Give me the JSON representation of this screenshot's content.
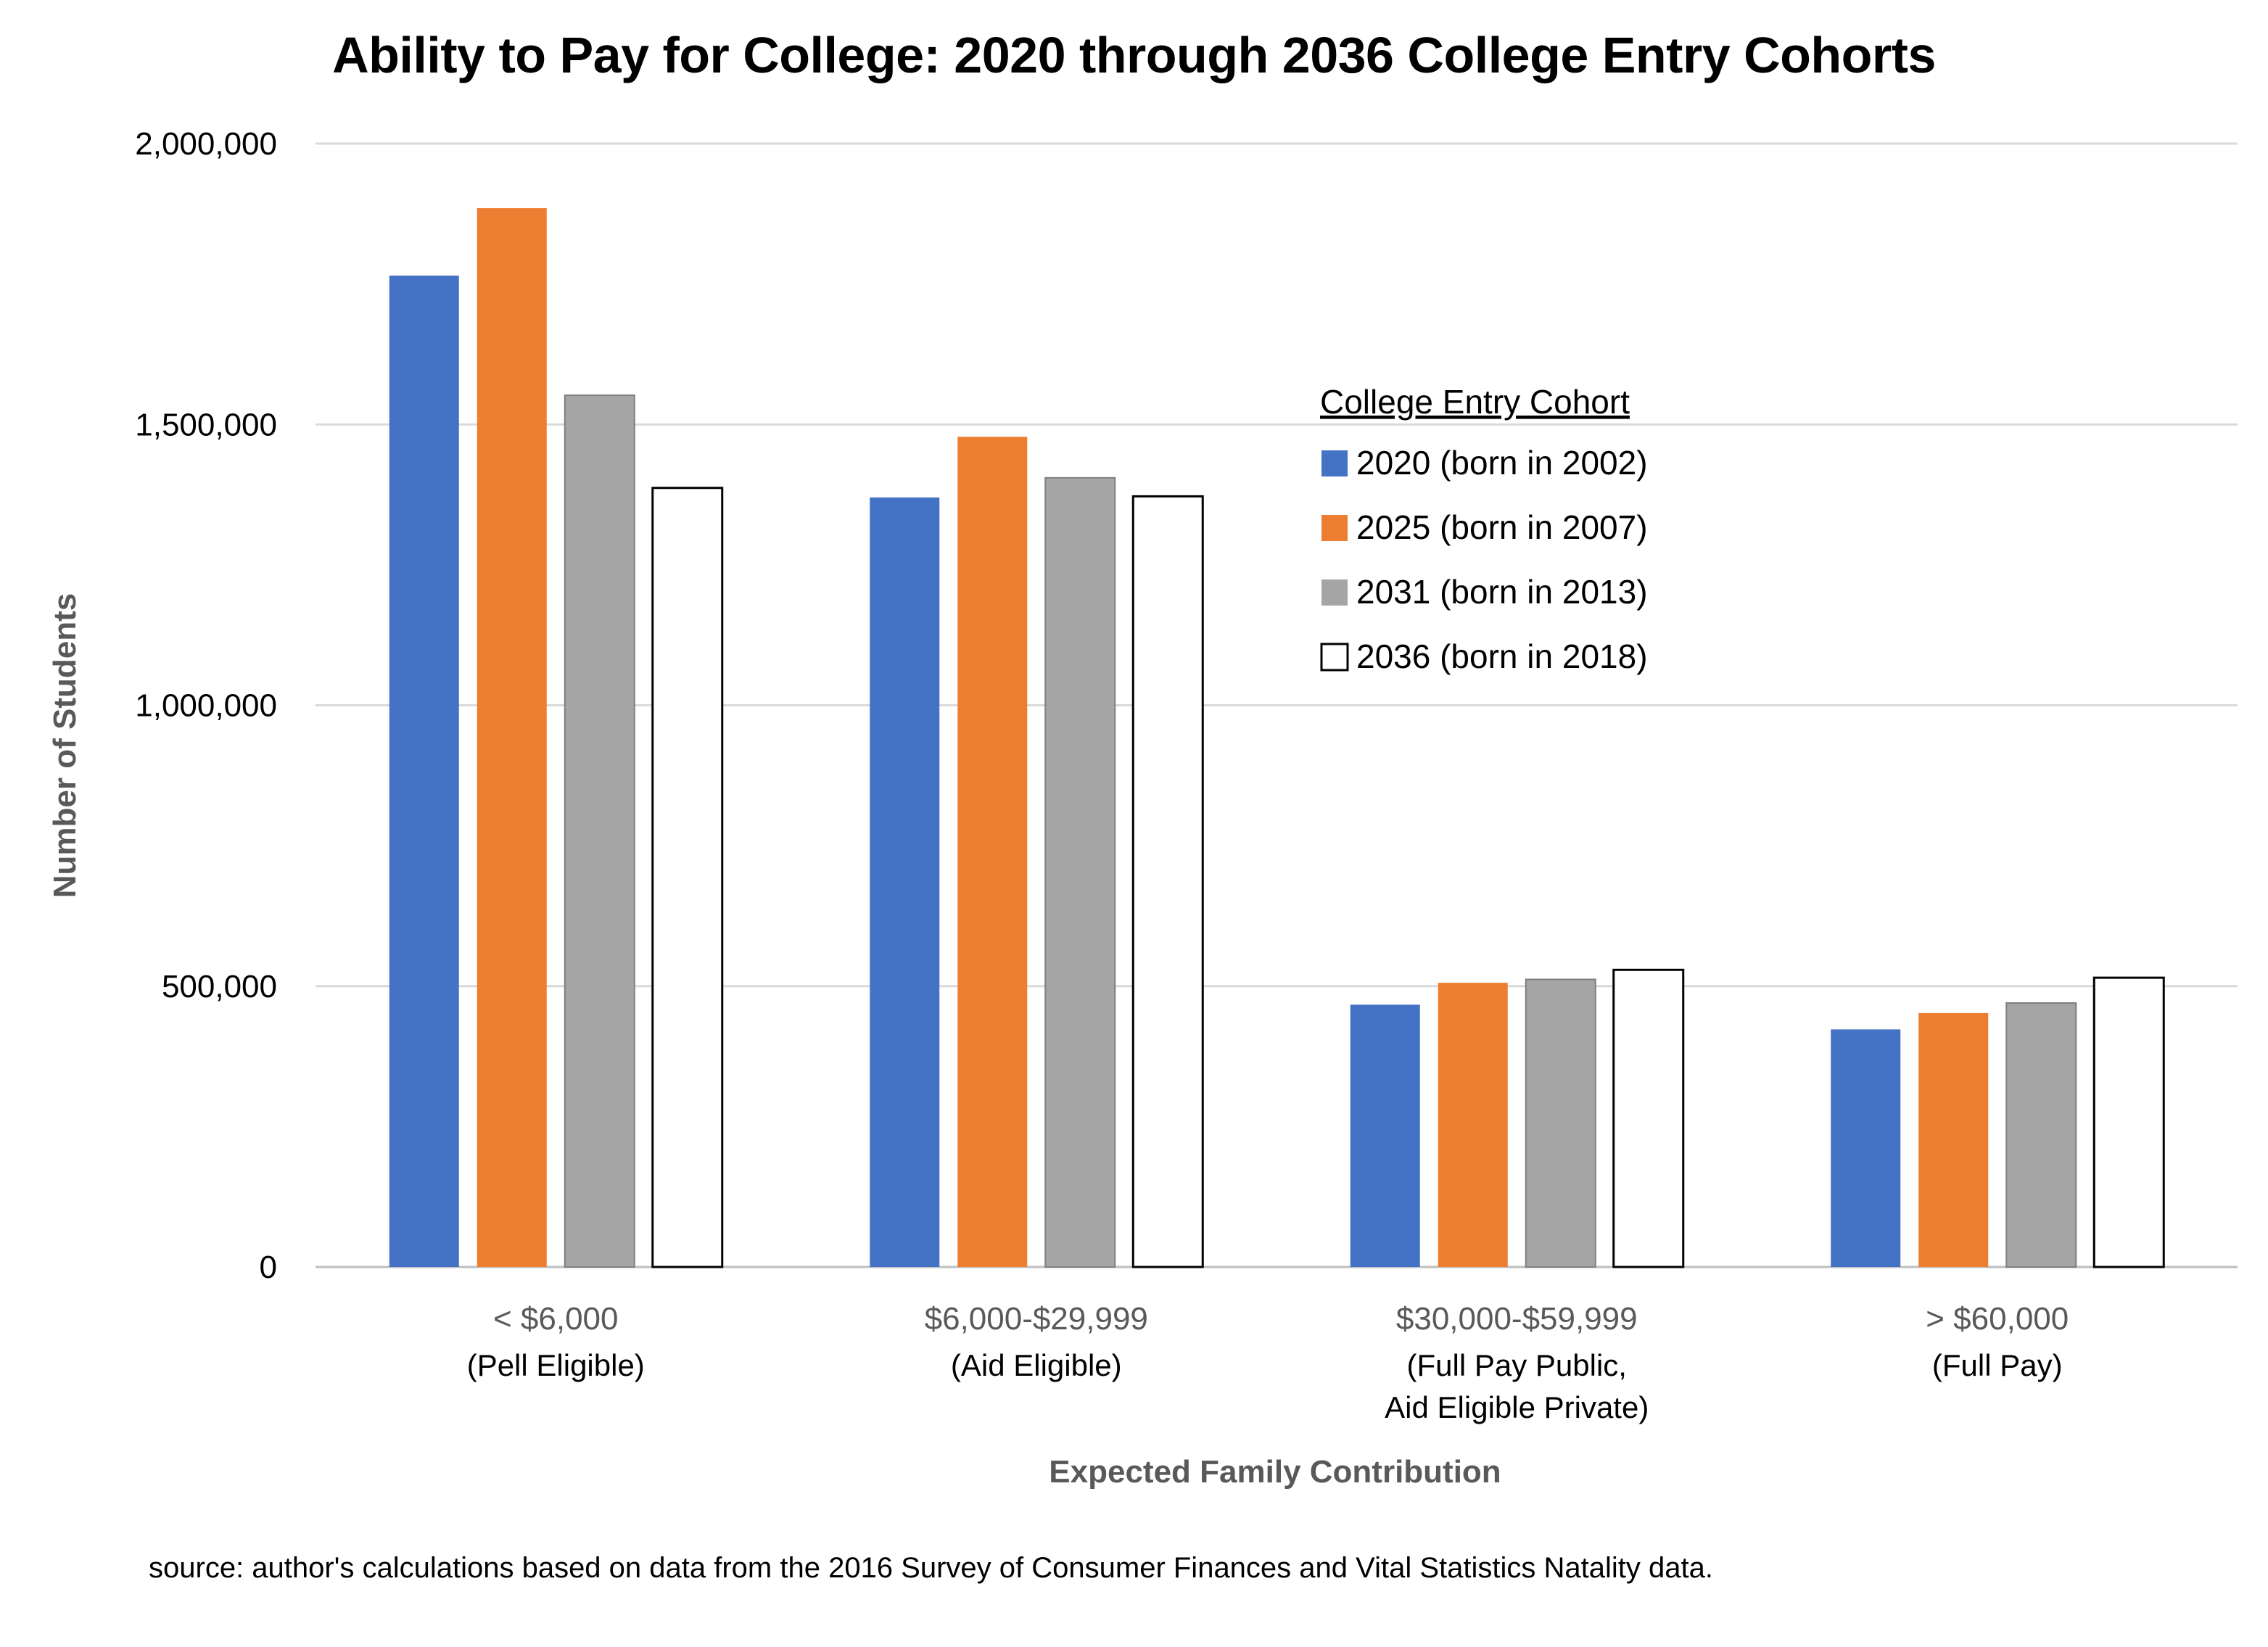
{
  "chart_data": {
    "type": "bar",
    "title": "Ability to Pay for College: 2020 through 2036 College Entry Cohorts",
    "xlabel": "Expected Family Contribution",
    "ylabel": "Number of Students",
    "ylim": [
      0,
      2000000
    ],
    "yticks": [
      "0",
      "500,000",
      "1,000,000",
      "1,500,000",
      "2,000,000"
    ],
    "grid": true,
    "legend_title": "College Entry Cohort",
    "legend_position": "upper-center",
    "categories": [
      {
        "main": "< $6,000",
        "sub": [
          "(Pell Eligible)"
        ]
      },
      {
        "main": "$6,000-$29,999",
        "sub": [
          "(Aid Eligible)"
        ]
      },
      {
        "main": "$30,000-$59,999",
        "sub": [
          "(Full Pay Public,",
          "Aid Eligible Private)"
        ]
      },
      {
        "main": "> $60,000",
        "sub": [
          "(Full Pay)"
        ]
      }
    ],
    "series": [
      {
        "name": "2020 (born in 2002)",
        "color": "#4472C4",
        "values": [
          1765000,
          1370000,
          467000,
          423000
        ]
      },
      {
        "name": "2025 (born in 2007)",
        "color": "#ED7D31",
        "values": [
          1885000,
          1478000,
          506000,
          452000
        ]
      },
      {
        "name": "2031 (born in 2013)",
        "color": "#A5A5A5",
        "values": [
          1552000,
          1405000,
          512000,
          470000
        ]
      },
      {
        "name": "2036 (born in 2018)",
        "color": "#FFFFFF",
        "values": [
          1387000,
          1372000,
          529000,
          515000
        ]
      }
    ]
  },
  "source_note": "source: author's calculations based on data from the 2016 Survey of Consumer Finances and Vital Statistics Natality data."
}
